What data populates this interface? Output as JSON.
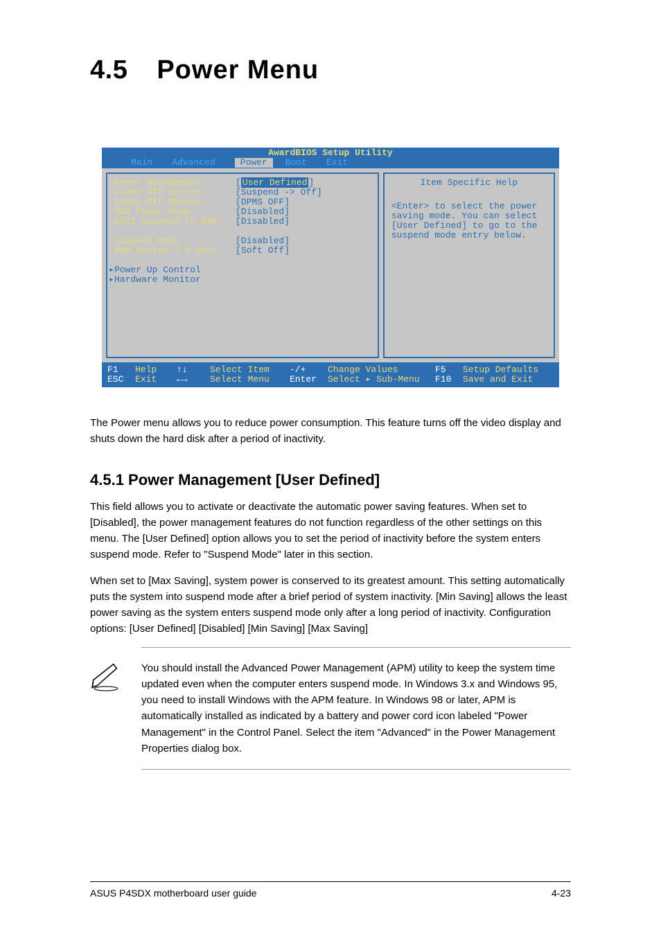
{
  "heading": {
    "number": "4.5",
    "title": "Power Menu"
  },
  "bios": {
    "util_title": "AwardBIOS Setup Utility",
    "menu": {
      "items": [
        "Main",
        "Advanced",
        "Power",
        "Boot",
        "Exit"
      ],
      "active_index": 2
    },
    "left_panel": {
      "rows": [
        {
          "label": "Power Management",
          "value": "[User Defined]",
          "label_color": "yellow",
          "value_hl": true
        },
        {
          "label": "Video Off Option",
          "value": "[Suspend -> Off]",
          "label_color": "yellow"
        },
        {
          "label": "Video Off Method",
          "value": "[DPMS OFF]",
          "label_color": "yellow"
        },
        {
          "label": "HDD Power Down",
          "value": "[Disabled]",
          "label_color": "yellow"
        },
        {
          "label": "ACPI Suspend To RAM",
          "value": "[Disabled]",
          "label_color": "yellow"
        },
        {
          "spacer": true
        },
        {
          "label": "Suspend Mode",
          "value": "[Disabled]",
          "label_color": "yellow"
        },
        {
          "label": "PWR Button < 4 Secs",
          "value": "[Soft Off]",
          "label_color": "yellow"
        },
        {
          "spacer": true
        },
        {
          "label": "Power Up Control",
          "value": "",
          "label_color": "blue",
          "marker": "▸"
        },
        {
          "label": "Hardware Monitor",
          "value": "",
          "label_color": "blue",
          "marker": "▸"
        }
      ]
    },
    "right_panel": {
      "title": "Item Specific Help",
      "text": "<Enter> to select the power saving mode. You can select [User Defined] to go to the suspend mode entry below."
    },
    "footer": {
      "rows": [
        {
          "k1": "F1",
          "a1": "Help",
          "k2": "↑↓",
          "a2": "Select Item",
          "k3": "-/+",
          "a3": "Change Values",
          "k4": "F5",
          "a4": "Setup Defaults"
        },
        {
          "k1": "ESC",
          "a1": "Exit",
          "k2": "←→",
          "a2": "Select Menu",
          "k3": "Enter",
          "a3": "Select ▸ Sub-Menu",
          "k4": "F10",
          "a4": "Save and Exit"
        }
      ]
    },
    "colors": {
      "header_bg": "#2d6eb3",
      "body_bg": "#c6c6c6",
      "yellow": "#e6d97a",
      "blue": "#2d6eb3",
      "link_blue": "#3faaff",
      "white": "#ffffff"
    }
  },
  "paragraphs": {
    "intro": "The Power menu allows you to reduce power consumption. This feature turns off the video display and shuts down the hard disk after a period of inactivity.",
    "sub1_title": "4.5.1 Power Management [User Defined]",
    "sub1_body": "This field allows you to activate or deactivate the automatic power saving features. When set to [Disabled], the power management features do not function regardless of the other settings on this menu. The [User Defined] option allows you to set the period of inactivity before the system enters suspend mode. Refer to \"Suspend Mode\" later in this section.",
    "sub1_body2": "When set to [Max Saving], system power is conserved to its greatest amount. This setting automatically puts the system into suspend mode after a brief period of system inactivity. [Min Saving] allows the least power saving as the system enters suspend mode only after a long period of inactivity. Configuration options: [User Defined] [Disabled] [Min Saving] [Max Saving]",
    "note": "You should install the Advanced Power Management (APM) utility to keep the system time updated even when the computer enters suspend mode. In Windows 3.x and Windows 95, you need to install Windows with the APM feature. In Windows 98 or later, APM is automatically installed as indicated by a battery and power cord icon labeled \"Power Management\" in the Control Panel. Select the item \"Advanced\" in the Power Management Properties dialog box."
  },
  "footer": {
    "left": "ASUS P4SDX motherboard user guide",
    "right": "4-23"
  }
}
